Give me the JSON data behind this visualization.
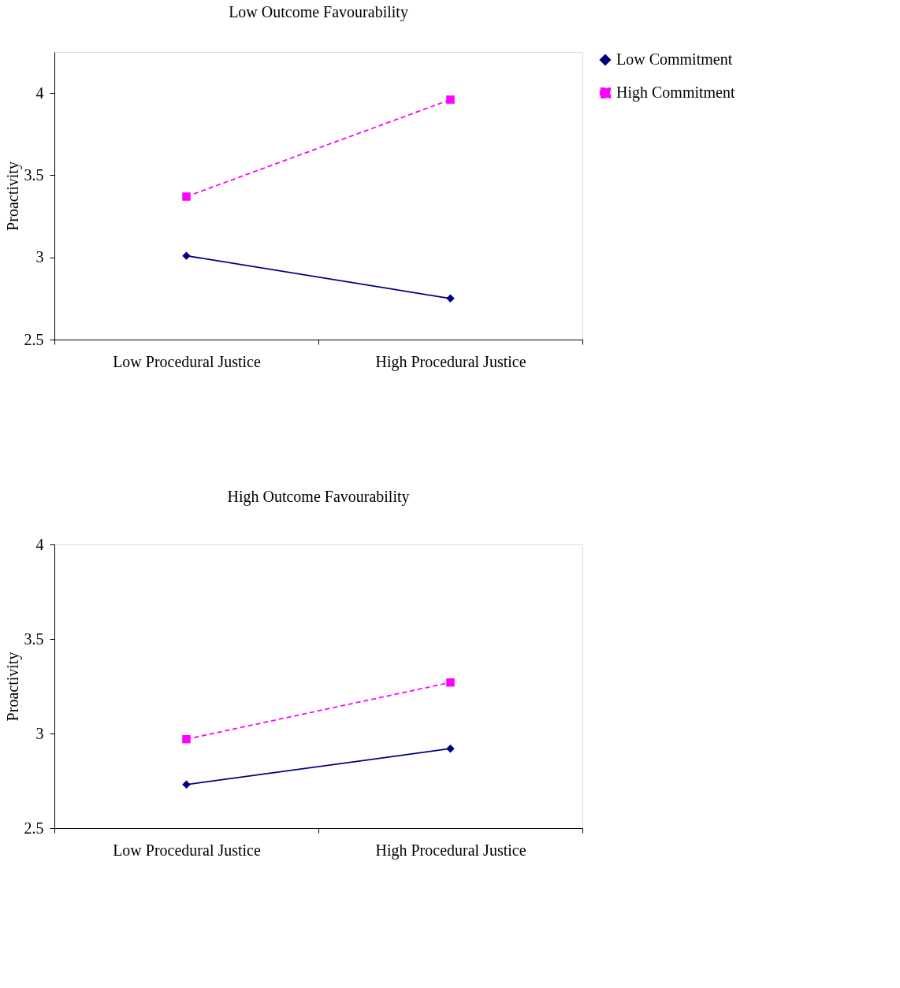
{
  "chart_data": [
    {
      "type": "line",
      "title": "Low Outcome Favourability",
      "ylabel": "Proactivity",
      "categories": [
        "Low Procedural Justice",
        "High Procedural Justice"
      ],
      "ylim": [
        2.5,
        4.25
      ],
      "yticks": [
        2.5,
        3,
        3.5,
        4
      ],
      "grid": false,
      "legend": "right",
      "series": [
        {
          "name": "Low Commitment",
          "color": "#000080",
          "values": [
            3.01,
            2.75
          ],
          "marker": "diamond",
          "line_style": "solid"
        },
        {
          "name": "High Commitment",
          "color": "#ff00ff",
          "values": [
            3.37,
            3.96
          ],
          "marker": "square",
          "line_style": "dashed"
        }
      ]
    },
    {
      "type": "line",
      "title": "High Outcome Favourability",
      "ylabel": "Proactivity",
      "categories": [
        "Low Procedural Justice",
        "High Procedural Justice"
      ],
      "ylim": [
        2.5,
        4
      ],
      "yticks": [
        2.5,
        3,
        3.5,
        4
      ],
      "grid": false,
      "legend": "right",
      "series": [
        {
          "name": "Low Commitment",
          "color": "#000080",
          "values": [
            2.73,
            2.92
          ],
          "marker": "diamond",
          "line_style": "solid"
        },
        {
          "name": "High Commitment",
          "color": "#ff00ff",
          "values": [
            2.97,
            3.27
          ],
          "marker": "square",
          "line_style": "dashed"
        }
      ]
    }
  ]
}
